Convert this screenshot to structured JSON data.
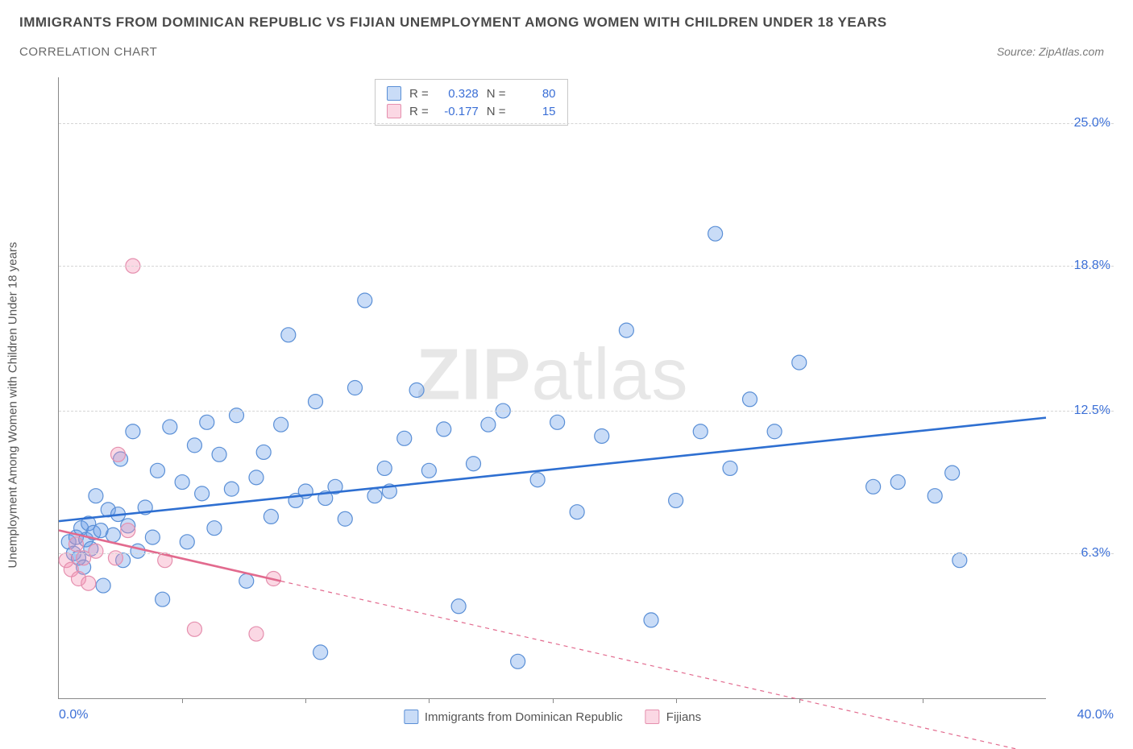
{
  "header": {
    "title": "IMMIGRANTS FROM DOMINICAN REPUBLIC VS FIJIAN UNEMPLOYMENT AMONG WOMEN WITH CHILDREN UNDER 18 YEARS",
    "subtitle": "CORRELATION CHART",
    "source": "Source: ZipAtlas.com"
  },
  "chart": {
    "type": "scatter",
    "watermark": "ZIPatlas",
    "background_color": "#ffffff",
    "grid_color": "#d5d5d5",
    "axis_color": "#888888",
    "tick_label_color": "#3b6fd6",
    "y_axis_label": "Unemployment Among Women with Children Under 18 years",
    "xlim": [
      0,
      40
    ],
    "ylim": [
      0,
      27
    ],
    "y_ticks": [
      {
        "value": 6.3,
        "label": "6.3%"
      },
      {
        "value": 12.5,
        "label": "12.5%"
      },
      {
        "value": 18.8,
        "label": "18.8%"
      },
      {
        "value": 25.0,
        "label": "25.0%"
      }
    ],
    "x_tick_positions": [
      5,
      10,
      15,
      20,
      25,
      30,
      35
    ],
    "x_label_min": "0.0%",
    "x_label_max": "40.0%",
    "marker_radius": 9,
    "marker_stroke_width": 1.2,
    "trendline_width": 2.6,
    "series": [
      {
        "id": "dominican",
        "label": "Immigrants from Dominican Republic",
        "fill_color": "rgba(99,155,233,0.35)",
        "stroke_color": "#5a8fd6",
        "line_color": "#2e6fd1",
        "R": "0.328",
        "N": "80",
        "trend": {
          "x1": 0,
          "y1": 7.7,
          "x2": 40,
          "y2": 12.2,
          "dash_after_x": null
        },
        "points": [
          [
            0.4,
            6.8
          ],
          [
            0.6,
            6.3
          ],
          [
            0.7,
            7.0
          ],
          [
            0.8,
            6.1
          ],
          [
            0.9,
            7.4
          ],
          [
            1.0,
            5.7
          ],
          [
            1.1,
            6.9
          ],
          [
            1.2,
            7.6
          ],
          [
            1.3,
            6.5
          ],
          [
            1.4,
            7.2
          ],
          [
            1.5,
            8.8
          ],
          [
            1.7,
            7.3
          ],
          [
            1.8,
            4.9
          ],
          [
            2.0,
            8.2
          ],
          [
            2.2,
            7.1
          ],
          [
            2.4,
            8.0
          ],
          [
            2.5,
            10.4
          ],
          [
            2.6,
            6.0
          ],
          [
            2.8,
            7.5
          ],
          [
            3.0,
            11.6
          ],
          [
            3.2,
            6.4
          ],
          [
            3.5,
            8.3
          ],
          [
            3.8,
            7.0
          ],
          [
            4.0,
            9.9
          ],
          [
            4.2,
            4.3
          ],
          [
            4.5,
            11.8
          ],
          [
            5.0,
            9.4
          ],
          [
            5.2,
            6.8
          ],
          [
            5.5,
            11.0
          ],
          [
            5.8,
            8.9
          ],
          [
            6.0,
            12.0
          ],
          [
            6.3,
            7.4
          ],
          [
            6.5,
            10.6
          ],
          [
            7.0,
            9.1
          ],
          [
            7.2,
            12.3
          ],
          [
            7.6,
            5.1
          ],
          [
            8.0,
            9.6
          ],
          [
            8.3,
            10.7
          ],
          [
            8.6,
            7.9
          ],
          [
            9.0,
            11.9
          ],
          [
            9.3,
            15.8
          ],
          [
            9.6,
            8.6
          ],
          [
            10.0,
            9.0
          ],
          [
            10.4,
            12.9
          ],
          [
            10.6,
            2.0
          ],
          [
            10.8,
            8.7
          ],
          [
            11.2,
            9.2
          ],
          [
            11.6,
            7.8
          ],
          [
            12.0,
            13.5
          ],
          [
            12.4,
            17.3
          ],
          [
            12.8,
            8.8
          ],
          [
            13.2,
            10.0
          ],
          [
            13.4,
            9.0
          ],
          [
            14.0,
            11.3
          ],
          [
            14.5,
            13.4
          ],
          [
            15.0,
            9.9
          ],
          [
            15.6,
            11.7
          ],
          [
            16.2,
            4.0
          ],
          [
            16.8,
            10.2
          ],
          [
            17.4,
            11.9
          ],
          [
            18.0,
            12.5
          ],
          [
            18.6,
            1.6
          ],
          [
            19.4,
            9.5
          ],
          [
            20.2,
            12.0
          ],
          [
            21.0,
            8.1
          ],
          [
            22.0,
            11.4
          ],
          [
            23.0,
            16.0
          ],
          [
            24.0,
            3.4
          ],
          [
            25.0,
            8.6
          ],
          [
            26.0,
            11.6
          ],
          [
            26.6,
            20.2
          ],
          [
            27.2,
            10.0
          ],
          [
            28.0,
            13.0
          ],
          [
            29.0,
            11.6
          ],
          [
            30.0,
            14.6
          ],
          [
            33.0,
            9.2
          ],
          [
            34.0,
            9.4
          ],
          [
            35.5,
            8.8
          ],
          [
            36.2,
            9.8
          ],
          [
            36.5,
            6.0
          ]
        ]
      },
      {
        "id": "fijian",
        "label": "Fijians",
        "fill_color": "rgba(244,143,177,0.35)",
        "stroke_color": "#e58fae",
        "line_color": "#e26a8e",
        "R": "-0.177",
        "N": "15",
        "trend": {
          "x1": 0,
          "y1": 7.3,
          "x2": 40,
          "y2": -2.5,
          "dash_after_x": 9.0
        },
        "points": [
          [
            0.3,
            6.0
          ],
          [
            0.5,
            5.6
          ],
          [
            0.7,
            6.7
          ],
          [
            0.8,
            5.2
          ],
          [
            1.0,
            6.1
          ],
          [
            1.2,
            5.0
          ],
          [
            1.5,
            6.4
          ],
          [
            2.3,
            6.1
          ],
          [
            2.4,
            10.6
          ],
          [
            2.8,
            7.3
          ],
          [
            3.0,
            18.8
          ],
          [
            4.3,
            6.0
          ],
          [
            5.5,
            3.0
          ],
          [
            8.0,
            2.8
          ],
          [
            8.7,
            5.2
          ]
        ]
      }
    ],
    "legend_box": {
      "rows": [
        {
          "swatch_fill": "rgba(99,155,233,0.35)",
          "swatch_stroke": "#5a8fd6",
          "r_label": "R =",
          "r_val": "0.328",
          "n_label": "N =",
          "n_val": "80"
        },
        {
          "swatch_fill": "rgba(244,143,177,0.35)",
          "swatch_stroke": "#e58fae",
          "r_label": "R =",
          "r_val": "-0.177",
          "n_label": "N =",
          "n_val": "15"
        }
      ]
    }
  }
}
